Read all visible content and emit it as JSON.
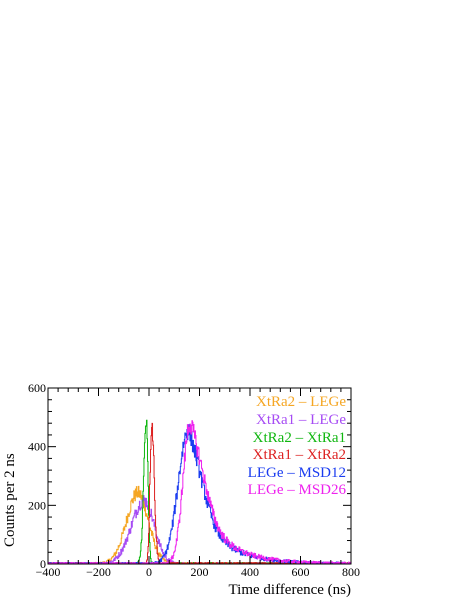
{
  "chart_data": {
    "type": "line",
    "xlabel": "Time difference (ns)",
    "ylabel": "Counts per 2 ns",
    "xlim": [
      -400,
      800
    ],
    "ylim": [
      0,
      600
    ],
    "xticks": [
      "−400",
      "−200",
      "0",
      "200",
      "400",
      "600",
      "800"
    ],
    "yticks": [
      "0",
      "200",
      "400",
      "600"
    ],
    "legend_position": "top-right",
    "grid": false,
    "series": [
      {
        "name": "XtRa2 – LEGe",
        "color": "#f5a623",
        "mu": -45,
        "sigL": 45,
        "sigR": 42,
        "amp": 240,
        "tailTau": 0
      },
      {
        "name": "XtRa1 – LEGe",
        "color": "#a64bf4",
        "mu": -20,
        "sigL": 50,
        "sigR": 40,
        "amp": 215,
        "tailTau": 0
      },
      {
        "name": "XtRa2 – XtRa1",
        "color": "#11b711",
        "mu": -12,
        "sigL": 10,
        "sigR": 7,
        "amp": 480,
        "tailTau": 0
      },
      {
        "name": "XtRa1 – XtRa2",
        "color": "#dd2222",
        "mu": 10,
        "sigL": 7,
        "sigR": 10,
        "amp": 480,
        "tailTau": 0
      },
      {
        "name": "LEGe – MSD12",
        "color": "#1a3cf0",
        "mu": 155,
        "sigL": 40,
        "sigR": 55,
        "amp": 455,
        "tailTau": 110
      },
      {
        "name": "LEGe – MSD26",
        "color": "#ee22ee",
        "mu": 162,
        "sigL": 28,
        "sigR": 55,
        "amp": 480,
        "tailTau": 110
      }
    ]
  }
}
